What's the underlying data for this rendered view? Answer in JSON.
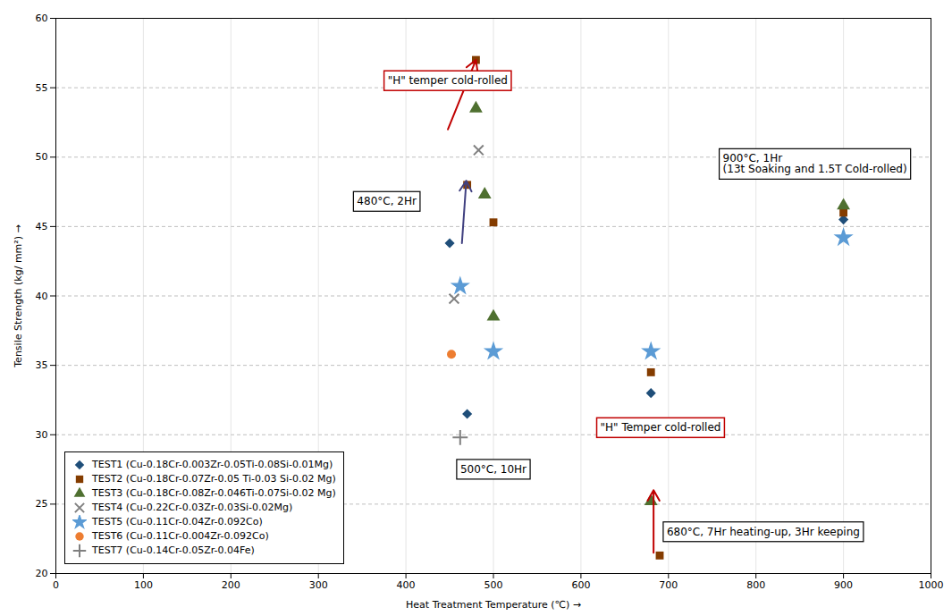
{
  "chart_data": {
    "type": "scatter",
    "xlabel": "Heat Treatment Temperature (℃)",
    "ylabel": "Tensile Strength (kg/ mm²)",
    "xlim": [
      0,
      1000
    ],
    "ylim": [
      20,
      60
    ],
    "xticks": [
      0,
      100,
      200,
      300,
      400,
      500,
      600,
      700,
      800,
      900,
      1000
    ],
    "yticks": [
      20,
      25,
      30,
      35,
      40,
      45,
      50,
      55,
      60
    ],
    "grid": true,
    "legend": "lower left",
    "series": [
      {
        "name": "TEST1 (Cu-0.18Cr-0.003Zr-0.05Ti-0.08Si-0.01Mg)",
        "color": "#1f4e79",
        "marker": "diamond",
        "x": [
          450,
          470,
          680,
          900
        ],
        "values": [
          43.8,
          31.5,
          33.0,
          45.5
        ]
      },
      {
        "name": "TEST2 (Cu-0.18Cr-0.07Zr-0.05 Ti-0.03 Si-0.02 Mg)",
        "color": "#843c00",
        "marker": "square",
        "x": [
          470,
          480,
          500,
          680,
          690,
          900
        ],
        "values": [
          48.0,
          57.0,
          45.3,
          34.5,
          21.3,
          46.0
        ]
      },
      {
        "name": "TEST3 (Cu-0.18Cr-0.08Zr-0.046Ti-0.07Si-0.02 Mg)",
        "color": "#4f7030",
        "marker": "triangle",
        "x": [
          480,
          490,
          500,
          680,
          900
        ],
        "values": [
          53.5,
          47.3,
          38.5,
          25.2,
          46.5
        ]
      },
      {
        "name": "TEST4 (Cu-0.22Cr-0.03Zr-0.03Si-0.02Mg)",
        "color": "#808080",
        "marker": "x",
        "x": [
          455,
          483
        ],
        "values": [
          39.8,
          50.5
        ]
      },
      {
        "name": "TEST5 (Cu-0.11Cr-0.04Zr-0.092Co)",
        "color": "#5b9bd5",
        "marker": "star",
        "x": [
          462,
          500,
          680,
          900
        ],
        "values": [
          40.7,
          36.0,
          36.0,
          44.2
        ]
      },
      {
        "name": "TEST6 (Cu-0.11Cr-0.004Zr-0.092Co)",
        "color": "#ed7d31",
        "marker": "circle",
        "x": [
          452
        ],
        "values": [
          35.8
        ]
      },
      {
        "name": "TEST7 (Cu-0.14Cr-0.05Zr-0.04Fe)",
        "color": "#7f7f7f",
        "marker": "plus",
        "x": [
          462
        ],
        "values": [
          29.8
        ]
      }
    ],
    "arrows": [
      {
        "from": [
          448,
          52.0
        ],
        "to": [
          480,
          57.0
        ],
        "color": "#c00000"
      },
      {
        "from": [
          464,
          43.8
        ],
        "to": [
          469,
          48.3
        ],
        "color": "#404080"
      },
      {
        "from": [
          683,
          21.5
        ],
        "to": [
          683,
          26.0
        ],
        "color": "#c00000"
      }
    ],
    "annotations": [
      {
        "text": "\"H\" temper cold-rolled",
        "x": 375,
        "y": 55.5,
        "color": "#c00000"
      },
      {
        "text": "480°C, 2Hr",
        "x": 340,
        "y": 46.8,
        "color": "black"
      },
      {
        "text": "500°C, 10Hr",
        "x": 458,
        "y": 27.5,
        "color": "black"
      },
      {
        "text": "\"H\" Temper cold-rolled",
        "x": 618,
        "y": 30.5,
        "color": "#c00000"
      },
      {
        "text": "900°C, 1Hr\n(13t Soaking and 1.5T Cold-rolled)",
        "x": 758,
        "y": 49.5,
        "color": "black"
      },
      {
        "text": "680°C, 7Hr heating-up, 3Hr keeping",
        "x": 694,
        "y": 23.0,
        "color": "black"
      }
    ]
  }
}
